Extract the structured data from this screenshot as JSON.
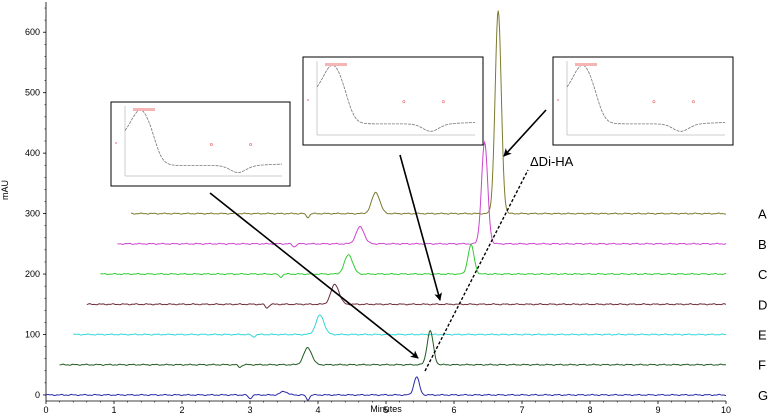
{
  "chart_data": {
    "type": "line",
    "title": "",
    "xlabel": "Minutes",
    "ylabel": "mAU",
    "xlim": [
      0,
      10
    ],
    "ylim": [
      -10,
      650
    ],
    "x_ticks": [
      "0",
      "1",
      "2",
      "3",
      "4",
      "5",
      "6",
      "7",
      "8",
      "9",
      "10"
    ],
    "y_ticks": [
      "0",
      "100",
      "200",
      "300",
      "400",
      "500",
      "600"
    ],
    "grid": false,
    "legend": "none",
    "series": [
      {
        "name": "A",
        "color": "#7d7a2e",
        "offset_mau": 300,
        "x_start": 1.25,
        "x_end": 10,
        "peaks": [
          {
            "x": 4.85,
            "height": 35,
            "width": 0.06
          },
          {
            "x": 6.65,
            "height": 335,
            "width": 0.045
          }
        ],
        "dips": [
          {
            "x": 3.85,
            "depth": 6
          }
        ]
      },
      {
        "name": "B",
        "color": "#cc44cc",
        "offset_mau": 250,
        "x_start": 1.05,
        "x_end": 10,
        "peaks": [
          {
            "x": 4.62,
            "height": 28,
            "width": 0.06
          },
          {
            "x": 6.45,
            "height": 168,
            "width": 0.045
          }
        ],
        "dips": [
          {
            "x": 3.65,
            "depth": 5
          }
        ]
      },
      {
        "name": "C",
        "color": "#33cc33",
        "offset_mau": 200,
        "x_start": 0.8,
        "x_end": 10,
        "peaks": [
          {
            "x": 4.45,
            "height": 32,
            "width": 0.06
          },
          {
            "x": 6.25,
            "height": 48,
            "width": 0.045
          }
        ],
        "dips": [
          {
            "x": 3.45,
            "depth": 5
          }
        ]
      },
      {
        "name": "D",
        "color": "#6b2a35",
        "offset_mau": 150,
        "x_start": 0.6,
        "x_end": 10,
        "peaks": [
          {
            "x": 4.25,
            "height": 33,
            "width": 0.06
          }
        ],
        "dips": [
          {
            "x": 3.25,
            "depth": 6
          }
        ]
      },
      {
        "name": "E",
        "color": "#33d6d6",
        "offset_mau": 100,
        "x_start": 0.4,
        "x_end": 10,
        "peaks": [
          {
            "x": 4.03,
            "height": 32,
            "width": 0.06
          }
        ],
        "dips": [
          {
            "x": 3.05,
            "depth": 4
          }
        ]
      },
      {
        "name": "F",
        "color": "#1f5a1f",
        "offset_mau": 50,
        "x_start": 0.2,
        "x_end": 10,
        "peaks": [
          {
            "x": 3.85,
            "height": 28,
            "width": 0.06
          },
          {
            "x": 5.65,
            "height": 56,
            "width": 0.045
          }
        ],
        "dips": [
          {
            "x": 2.85,
            "depth": 4
          }
        ]
      },
      {
        "name": "G",
        "color": "#2a2aa6",
        "offset_mau": 0,
        "x_start": 0,
        "x_end": 10,
        "peaks": [
          {
            "x": 3.5,
            "height": 6,
            "width": 0.05
          },
          {
            "x": 5.45,
            "height": 30,
            "width": 0.04
          }
        ],
        "dips": [
          {
            "x": 3.0,
            "depth": 6
          },
          {
            "x": 3.85,
            "depth": 8
          }
        ]
      }
    ],
    "annotations": [
      {
        "text": "ΔDi-HA"
      }
    ]
  },
  "insets": [
    {
      "label": "x"
    },
    {
      "label": "x"
    },
    {
      "label": "x"
    }
  ]
}
